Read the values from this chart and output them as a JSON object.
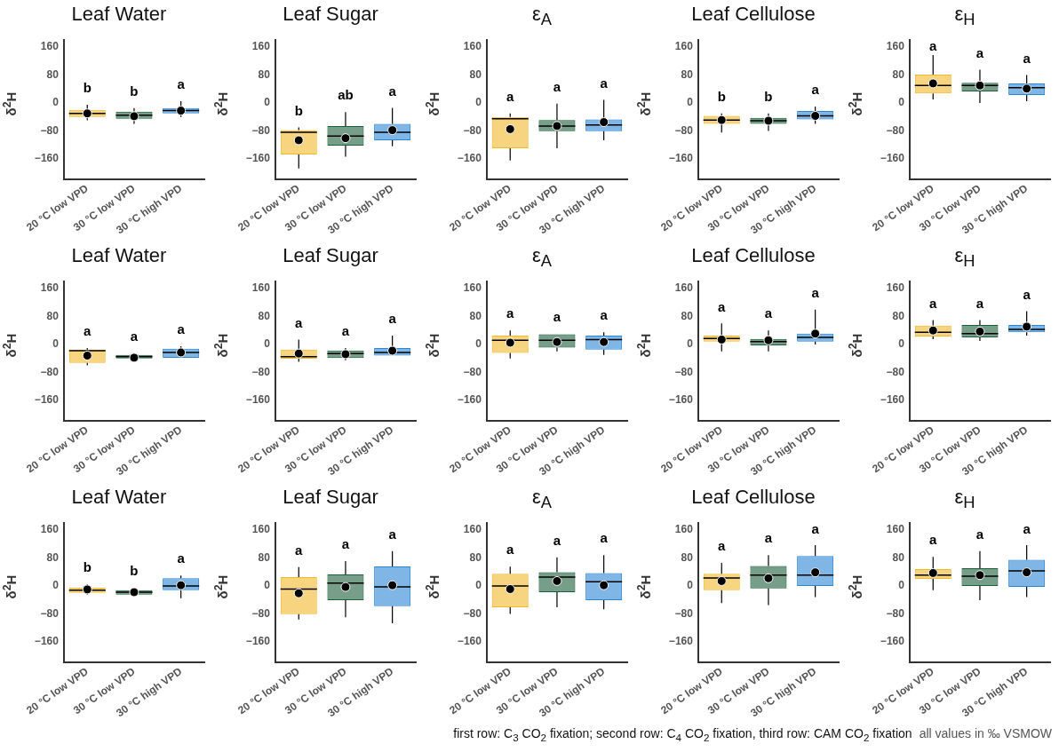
{
  "chart_data": [
    {
      "type": "box",
      "title": "Leaf Water",
      "ylabel": "δ$^{2}$H",
      "categories": [
        "20 °C low VPD",
        "30 °C low VPD",
        "30 °C high VPD"
      ],
      "colors": [
        "#f2b82c",
        "#1a5e3a",
        "#2a86d6"
      ],
      "ylim": [
        -220,
        180
      ],
      "yticks": [
        -160,
        -80,
        0,
        80,
        160
      ],
      "boxes": [
        {
          "low": -50,
          "q1": -40,
          "median": -30,
          "q3": -20,
          "high": -5,
          "mean": -30
        },
        {
          "low": -60,
          "q1": -45,
          "median": -35,
          "q3": -25,
          "high": -15,
          "mean": -38
        },
        {
          "low": -40,
          "q1": -30,
          "median": -22,
          "q3": -15,
          "high": 5,
          "mean": -22
        }
      ],
      "annotations": [
        "b",
        "b",
        "a"
      ]
    },
    {
      "type": "box",
      "title": "Leaf Sugar",
      "ylabel": "δ$^{2}$H",
      "categories": [
        "20 °C low VPD",
        "30 °C low VPD",
        "30 °C high VPD"
      ],
      "colors": [
        "#f2b82c",
        "#1a5e3a",
        "#2a86d6"
      ],
      "ylim": [
        -220,
        180
      ],
      "yticks": [
        -160,
        -80,
        0,
        80,
        160
      ],
      "boxes": [
        {
          "low": -188,
          "q1": -148,
          "median": -84,
          "q3": -78,
          "high": -70,
          "mean": -107
        },
        {
          "low": -154,
          "q1": -122,
          "median": -95,
          "q3": -66,
          "high": -26,
          "mean": -101
        },
        {
          "low": -124,
          "q1": -107,
          "median": -84,
          "q3": -60,
          "high": -14,
          "mean": -78
        }
      ],
      "annotations": [
        "b",
        "ab",
        "a"
      ]
    },
    {
      "type": "box",
      "title": "ε$_{A}$",
      "ylabel": "δ$^{2}$H",
      "categories": [
        "20 °C low VPD",
        "30 °C low VPD",
        "30 °C high VPD"
      ],
      "colors": [
        "#f2b82c",
        "#1a5e3a",
        "#2a86d6"
      ],
      "ylim": [
        -220,
        180
      ],
      "yticks": [
        -160,
        -80,
        0,
        80,
        160
      ],
      "boxes": [
        {
          "low": -165,
          "q1": -130,
          "median": -45,
          "q3": -40,
          "high": -30,
          "mean": -75
        },
        {
          "low": -130,
          "q1": -81,
          "median": -66,
          "q3": -49,
          "high": -2,
          "mean": -66
        },
        {
          "low": -107,
          "q1": -81,
          "median": -63,
          "q3": -47,
          "high": 9,
          "mean": -55
        }
      ],
      "annotations": [
        "a",
        "a",
        "a"
      ]
    },
    {
      "type": "box",
      "title": "Leaf Cellulose",
      "ylabel": "δ$^{2}$H",
      "categories": [
        "20 °C low VPD",
        "30 °C low VPD",
        "30 °C high VPD"
      ],
      "colors": [
        "#f2b82c",
        "#1a5e3a",
        "#2a86d6"
      ],
      "ylim": [
        -220,
        180
      ],
      "yticks": [
        -160,
        -80,
        0,
        80,
        160
      ],
      "boxes": [
        {
          "low": -85,
          "q1": -60,
          "median": -49,
          "q3": -37,
          "high": -30,
          "mean": -49
        },
        {
          "low": -80,
          "q1": -60,
          "median": -51,
          "q3": -43,
          "high": -30,
          "mean": -51
        },
        {
          "low": -60,
          "q1": -47,
          "median": -37,
          "q3": -23,
          "high": -10,
          "mean": -37
        }
      ],
      "annotations": [
        "b",
        "b",
        "a"
      ]
    },
    {
      "type": "box",
      "title": "ε$_{H}$",
      "ylabel": "δ$^{2}$H",
      "categories": [
        "20 °C low VPD",
        "30 °C low VPD",
        "30 °C high VPD"
      ],
      "colors": [
        "#f2b82c",
        "#1a5e3a",
        "#2a86d6"
      ],
      "ylim": [
        -220,
        180
      ],
      "yticks": [
        -160,
        -80,
        0,
        80,
        160
      ],
      "boxes": [
        {
          "low": 10,
          "q1": 27,
          "median": 50,
          "q3": 81,
          "high": 137,
          "mean": 56
        },
        {
          "low": 0,
          "q1": 33,
          "median": 50,
          "q3": 58,
          "high": 95,
          "mean": 50
        },
        {
          "low": 5,
          "q1": 23,
          "median": 44,
          "q3": 56,
          "high": 80,
          "mean": 41
        }
      ],
      "annotations": [
        "a",
        "a",
        "a"
      ]
    },
    {
      "type": "box",
      "title": "Leaf Water",
      "ylabel": "δ$^{2}$H",
      "categories": [
        "20 °C low VPD",
        "30 °C low VPD",
        "30 °C high VPD"
      ],
      "colors": [
        "#f2b82c",
        "#1a5e3a",
        "#2a86d6"
      ],
      "ylim": [
        -220,
        180
      ],
      "yticks": [
        -160,
        -80,
        0,
        80,
        160
      ],
      "boxes": [
        {
          "low": -60,
          "q1": -53,
          "median": -18,
          "q3": -15,
          "high": -10,
          "mean": -32
        },
        {
          "low": -45,
          "q1": -40,
          "median": -35,
          "q3": -30,
          "high": -25,
          "mean": -38
        },
        {
          "low": -40,
          "q1": -38,
          "median": -23,
          "q3": -12,
          "high": -5,
          "mean": -23
        }
      ],
      "annotations": [
        "a",
        "a",
        "a"
      ]
    },
    {
      "type": "box",
      "title": "Leaf Sugar",
      "ylabel": "δ$^{2}$H",
      "categories": [
        "20 °C low VPD",
        "30 °C low VPD",
        "30 °C high VPD"
      ],
      "colors": [
        "#f2b82c",
        "#1a5e3a",
        "#2a86d6"
      ],
      "ylim": [
        -220,
        180
      ],
      "yticks": [
        -160,
        -80,
        0,
        80,
        160
      ],
      "boxes": [
        {
          "low": -50,
          "q1": -41,
          "median": -35,
          "q3": -15,
          "high": 14,
          "mean": -26
        },
        {
          "low": -45,
          "q1": -39,
          "median": -26,
          "q3": -17,
          "high": -10,
          "mean": -28
        },
        {
          "low": -35,
          "q1": -32,
          "median": -23,
          "q3": -10,
          "high": 25,
          "mean": -18
        }
      ],
      "annotations": [
        "a",
        "a",
        "a"
      ]
    },
    {
      "type": "box",
      "title": "ε$_{A}$",
      "ylabel": "δ$^{2}$H",
      "categories": [
        "20 °C low VPD",
        "30 °C low VPD",
        "30 °C high VPD"
      ],
      "colors": [
        "#f2b82c",
        "#1a5e3a",
        "#2a86d6"
      ],
      "ylim": [
        -220,
        180
      ],
      "yticks": [
        -160,
        -80,
        0,
        80,
        160
      ],
      "boxes": [
        {
          "low": -40,
          "q1": -24,
          "median": 12,
          "q3": 25,
          "high": 40,
          "mean": 5
        },
        {
          "low": -20,
          "q1": -9,
          "median": 12,
          "q3": 29,
          "high": 30,
          "mean": 7
        },
        {
          "low": -30,
          "q1": -15,
          "median": 14,
          "q3": 25,
          "high": 35,
          "mean": 7
        }
      ],
      "annotations": [
        "a",
        "a",
        "a"
      ]
    },
    {
      "type": "box",
      "title": "Leaf Cellulose",
      "ylabel": "δ$^{2}$H",
      "categories": [
        "20 °C low VPD",
        "30 °C low VPD",
        "30 °C high VPD"
      ],
      "colors": [
        "#f2b82c",
        "#1a5e3a",
        "#2a86d6"
      ],
      "ylim": [
        -220,
        180
      ],
      "yticks": [
        -160,
        -80,
        0,
        80,
        160
      ],
      "boxes": [
        {
          "low": -20,
          "q1": 8,
          "median": 17,
          "q3": 25,
          "high": 60,
          "mean": 14
        },
        {
          "low": -20,
          "q1": -3,
          "median": 8,
          "q3": 16,
          "high": 40,
          "mean": 12
        },
        {
          "low": 0,
          "q1": 8,
          "median": 20,
          "q3": 31,
          "high": 100,
          "mean": 31
        }
      ],
      "annotations": [
        "a",
        "a",
        "a"
      ]
    },
    {
      "type": "box",
      "title": "ε$_{H}$",
      "ylabel": "δ$^{2}$H",
      "categories": [
        "20 °C low VPD",
        "30 °C low VPD",
        "30 °C high VPD"
      ],
      "colors": [
        "#f2b82c",
        "#1a5e3a",
        "#2a86d6"
      ],
      "ylim": [
        -220,
        180
      ],
      "yticks": [
        -160,
        -80,
        0,
        80,
        160
      ],
      "boxes": [
        {
          "low": 15,
          "q1": 23,
          "median": 35,
          "q3": 54,
          "high": 70,
          "mean": 40
        },
        {
          "low": 10,
          "q1": 20,
          "median": 31,
          "q3": 56,
          "high": 70,
          "mean": 37
        },
        {
          "low": 25,
          "q1": 35,
          "median": 43,
          "q3": 56,
          "high": 95,
          "mean": 51
        }
      ],
      "annotations": [
        "a",
        "a",
        "a"
      ]
    },
    {
      "type": "box",
      "title": "Leaf Water",
      "ylabel": "δ$^{2}$H",
      "categories": [
        "20 °C low VPD",
        "30 °C low VPD",
        "30 °C high VPD"
      ],
      "colors": [
        "#f2b82c",
        "#1a5e3a",
        "#2a86d6"
      ],
      "ylim": [
        -220,
        180
      ],
      "yticks": [
        -160,
        -80,
        0,
        80,
        160
      ],
      "boxes": [
        {
          "low": -25,
          "q1": -20,
          "median": -12,
          "q3": -5,
          "high": 5,
          "mean": -10
        },
        {
          "low": -30,
          "q1": -25,
          "median": -18,
          "q3": -12,
          "high": -5,
          "mean": -18
        },
        {
          "low": -35,
          "q1": -12,
          "median": 0,
          "q3": 22,
          "high": 30,
          "mean": 2
        }
      ],
      "annotations": [
        "b",
        "b",
        "a"
      ]
    },
    {
      "type": "box",
      "title": "Leaf Sugar",
      "ylabel": "δ$^{2}$H",
      "categories": [
        "20 °C low VPD",
        "30 °C low VPD",
        "30 °C high VPD"
      ],
      "colors": [
        "#f2b82c",
        "#1a5e3a",
        "#2a86d6"
      ],
      "ylim": [
        -220,
        180
      ],
      "yticks": [
        -160,
        -80,
        0,
        80,
        160
      ],
      "boxes": [
        {
          "low": -96,
          "q1": -81,
          "median": -9,
          "q3": 25,
          "high": 54,
          "mean": -21
        },
        {
          "low": -90,
          "q1": -41,
          "median": 8,
          "q3": 33,
          "high": 71,
          "mean": -3
        },
        {
          "low": -107,
          "q1": -58,
          "median": -3,
          "q3": 56,
          "high": 100,
          "mean": 2
        }
      ],
      "annotations": [
        "a",
        "a",
        "a"
      ]
    },
    {
      "type": "box",
      "title": "ε$_{A}$",
      "ylabel": "δ$^{2}$H",
      "categories": [
        "20 °C low VPD",
        "30 °C low VPD",
        "30 °C high VPD"
      ],
      "colors": [
        "#f2b82c",
        "#1a5e3a",
        "#2a86d6"
      ],
      "ylim": [
        -220,
        180
      ],
      "yticks": [
        -160,
        -80,
        0,
        80,
        160
      ],
      "boxes": [
        {
          "low": -80,
          "q1": -61,
          "median": 0,
          "q3": 35,
          "high": 55,
          "mean": -9
        },
        {
          "low": -61,
          "q1": -18,
          "median": 25,
          "q3": 39,
          "high": 82,
          "mean": 14
        },
        {
          "low": -67,
          "q1": -41,
          "median": 12,
          "q3": 37,
          "high": 88,
          "mean": 2
        }
      ],
      "annotations": [
        "a",
        "a",
        "a"
      ]
    },
    {
      "type": "box",
      "title": "Leaf Cellulose",
      "ylabel": "δ$^{2}$H",
      "categories": [
        "20 °C low VPD",
        "30 °C low VPD",
        "30 °C high VPD"
      ],
      "colors": [
        "#f2b82c",
        "#1a5e3a",
        "#2a86d6"
      ],
      "ylim": [
        -220,
        180
      ],
      "yticks": [
        -160,
        -80,
        0,
        80,
        160
      ],
      "boxes": [
        {
          "low": -49,
          "q1": -12,
          "median": 23,
          "q3": 35,
          "high": 66,
          "mean": 14
        },
        {
          "low": -55,
          "q1": -7,
          "median": 31,
          "q3": 57,
          "high": 88,
          "mean": 22
        },
        {
          "low": -32,
          "q1": 0,
          "median": 31,
          "q3": 86,
          "high": 117,
          "mean": 39
        }
      ],
      "annotations": [
        "a",
        "a",
        "a"
      ]
    },
    {
      "type": "box",
      "title": "ε$_{H}$",
      "ylabel": "δ$^{2}$H",
      "categories": [
        "20 °C low VPD",
        "30 °C low VPD",
        "30 °C high VPD"
      ],
      "colors": [
        "#f2b82c",
        "#1a5e3a",
        "#2a86d6"
      ],
      "ylim": [
        -220,
        180
      ],
      "yticks": [
        -160,
        -80,
        0,
        80,
        160
      ],
      "boxes": [
        {
          "low": -12,
          "q1": 20,
          "median": 31,
          "q3": 48,
          "high": 83,
          "mean": 37
        },
        {
          "low": -41,
          "q1": 0,
          "median": 28,
          "q3": 51,
          "high": 100,
          "mean": 31
        },
        {
          "low": -32,
          "q1": -3,
          "median": 43,
          "q3": 75,
          "high": 117,
          "mean": 39
        }
      ],
      "annotations": [
        "a",
        "a",
        "a",
        "first row: C$_{3}$ CO$_{2}$ fixation; second row: C$_{4}$ CO$_{2}$ fixation, third row: CAM CO$_{2}$ fixation",
        "all values in ‰ VSMOW"
      ]
    }
  ]
}
